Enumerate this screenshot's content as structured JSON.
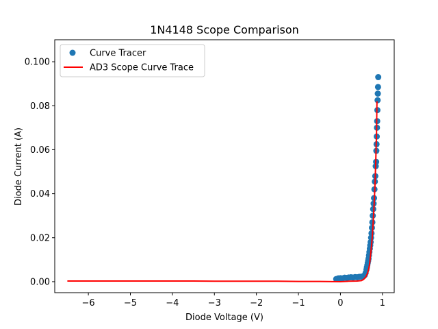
{
  "chart_data": {
    "type": "scatter",
    "title": "1N4148 Scope Comparison",
    "xlabel": "Diode Voltage (V)",
    "ylabel": "Diode Current (A)",
    "xlim": [
      -6.8,
      1.28
    ],
    "ylim": [
      -0.005,
      0.11
    ],
    "xticks": [
      -6,
      -5,
      -4,
      -3,
      -2,
      -1,
      0,
      1
    ],
    "xtick_labels": [
      "−6",
      "−5",
      "−4",
      "−3",
      "−2",
      "−1",
      "0",
      "1"
    ],
    "yticks": [
      0.0,
      0.02,
      0.04,
      0.06,
      0.08,
      0.1
    ],
    "ytick_labels": [
      "0.00",
      "0.02",
      "0.04",
      "0.06",
      "0.08",
      "0.100"
    ],
    "grid": false,
    "legend_position": "top-left",
    "series": [
      {
        "name": "Curve Tracer",
        "kind": "scatter",
        "color": "#1f77b4",
        "x": [
          -0.1,
          -0.05,
          0.0,
          0.05,
          0.1,
          0.15,
          0.2,
          0.25,
          0.3,
          0.35,
          0.4,
          0.45,
          0.5,
          0.55,
          0.58,
          0.6,
          0.62,
          0.63,
          0.64,
          0.65,
          0.66,
          0.67,
          0.68,
          0.69,
          0.7,
          0.71,
          0.72,
          0.73,
          0.74,
          0.75,
          0.76,
          0.77,
          0.78,
          0.79,
          0.8,
          0.81,
          0.82,
          0.83,
          0.84,
          0.85,
          0.855,
          0.86,
          0.865,
          0.87,
          0.875,
          0.88,
          0.885,
          0.89,
          0.895,
          0.9
        ],
        "y": [
          0.0012,
          0.0015,
          0.0016,
          0.0015,
          0.0018,
          0.0017,
          0.0019,
          0.002,
          0.0019,
          0.0021,
          0.002,
          0.0022,
          0.0023,
          0.0025,
          0.003,
          0.004,
          0.0055,
          0.0065,
          0.0075,
          0.0085,
          0.0095,
          0.0105,
          0.012,
          0.0135,
          0.015,
          0.0165,
          0.018,
          0.02,
          0.022,
          0.0245,
          0.027,
          0.03,
          0.033,
          0.0355,
          0.038,
          0.042,
          0.0455,
          0.048,
          0.0525,
          0.0545,
          0.0595,
          0.0625,
          0.066,
          0.07,
          0.073,
          0.078,
          0.0825,
          0.0855,
          0.0885,
          0.093
        ]
      },
      {
        "name": "AD3 Scope Curve Trace",
        "kind": "line",
        "color": "#ff0000",
        "x": [
          -6.5,
          -6.0,
          -5.5,
          -5.0,
          -4.5,
          -4.0,
          -3.5,
          -3.0,
          -2.5,
          -2.0,
          -1.5,
          -1.0,
          -0.5,
          0.0,
          0.2,
          0.4,
          0.5,
          0.55,
          0.6,
          0.65,
          0.68,
          0.7,
          0.72,
          0.74,
          0.76,
          0.78,
          0.8,
          0.82,
          0.84,
          0.86,
          0.87
        ],
        "y": [
          0.0003,
          0.0003,
          0.0003,
          0.0003,
          0.0003,
          0.0003,
          0.0003,
          0.0002,
          0.0002,
          0.0002,
          0.0002,
          0.0001,
          0.0001,
          0.0,
          0.0002,
          0.0003,
          0.0005,
          0.001,
          0.002,
          0.004,
          0.0065,
          0.009,
          0.0125,
          0.0165,
          0.021,
          0.027,
          0.034,
          0.043,
          0.054,
          0.068,
          0.082
        ]
      }
    ]
  }
}
